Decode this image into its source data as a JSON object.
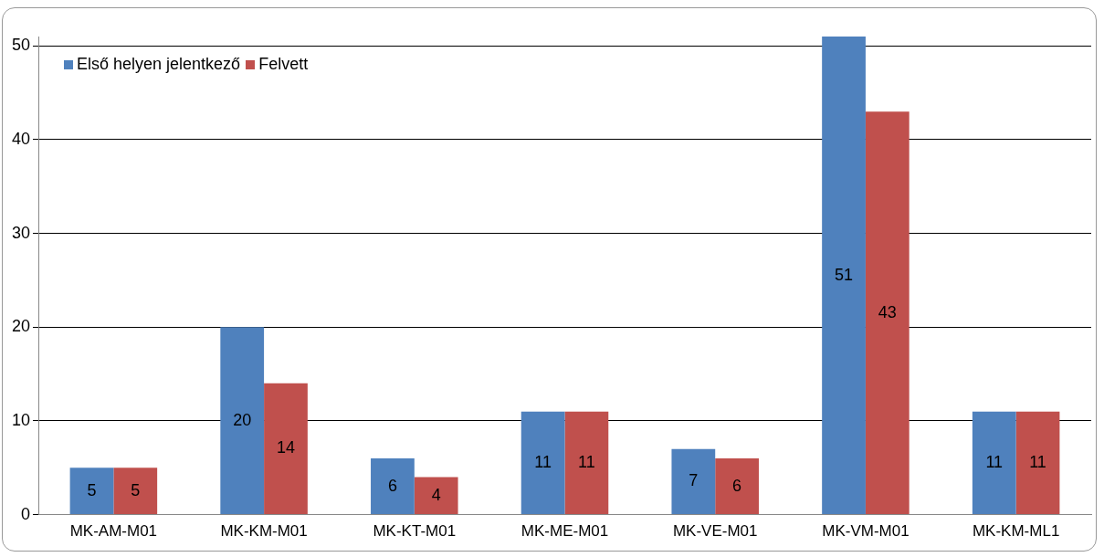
{
  "chart_data": {
    "type": "bar",
    "categories": [
      "MK-AM-M01",
      "MK-KM-M01",
      "MK-KT-M01",
      "MK-ME-M01",
      "MK-VE-M01",
      "MK-VM-M01",
      "MK-KM-ML1"
    ],
    "series": [
      {
        "name": "Első helyen jelentkező",
        "color": "#4f81bd",
        "values": [
          5,
          20,
          6,
          11,
          7,
          51,
          11
        ]
      },
      {
        "name": "Felvett",
        "color": "#c0504d",
        "values": [
          5,
          14,
          4,
          11,
          6,
          43,
          11
        ]
      }
    ],
    "ylim": [
      0,
      51
    ],
    "yticks": [
      0,
      10,
      20,
      30,
      40,
      50
    ],
    "grid": "y",
    "legend": "top left",
    "data_labels": true
  }
}
